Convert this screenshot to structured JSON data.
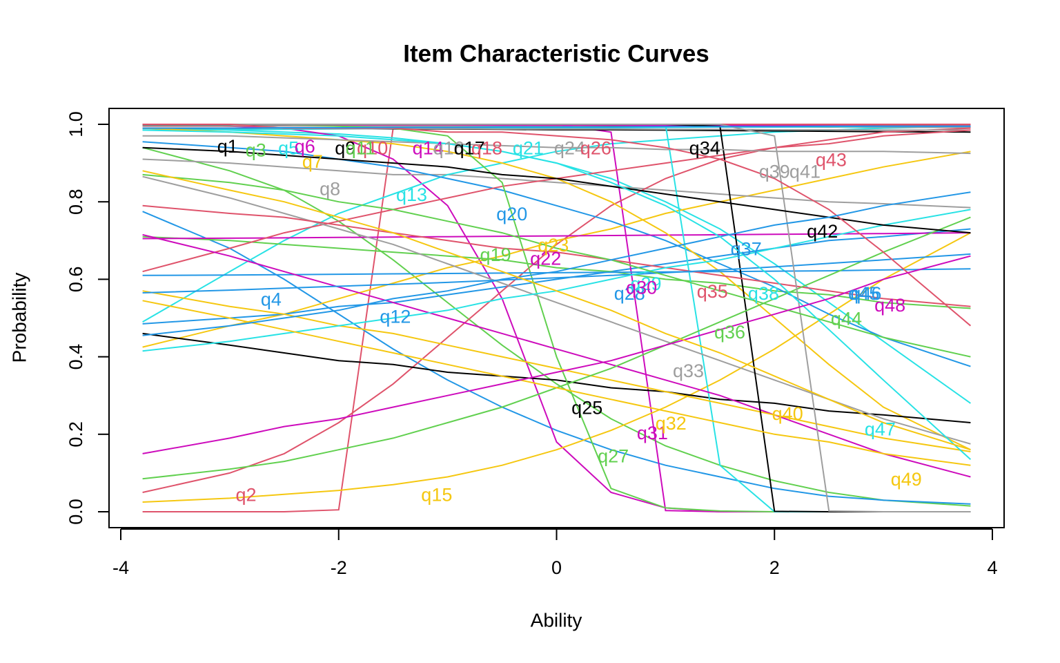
{
  "chart_data": {
    "type": "line",
    "title": "Item Characteristic Curves",
    "x_label": "Ability",
    "y_label": "Probability",
    "xlim": [
      -4,
      4
    ],
    "ylim": [
      0,
      1
    ],
    "xticks": [
      -4,
      -2,
      0,
      2,
      4
    ],
    "yticks": [
      {
        "value": 0,
        "label": "0.0"
      },
      {
        "value": 0.2,
        "label": "0.2"
      },
      {
        "value": 0.4,
        "label": "0.4"
      },
      {
        "value": 0.6,
        "label": "0.6"
      },
      {
        "value": 0.8,
        "label": "0.8"
      },
      {
        "value": 1,
        "label": "1.0"
      }
    ],
    "x": [
      -3.8,
      -3,
      -2.5,
      -2,
      -1.5,
      -1,
      -0.5,
      0,
      0.5,
      1,
      1.5,
      2,
      2.5,
      3,
      3.8
    ],
    "series": [
      {
        "name": "q1",
        "color": "#000000",
        "values": [
          1,
          1,
          1,
          1,
          1,
          1,
          1,
          1,
          0.999,
          0.999,
          0.998,
          0.998,
          0.997,
          0.996,
          0.995
        ]
      },
      {
        "name": "q2",
        "color": "#DF536B",
        "values": [
          0,
          0,
          0,
          0.005,
          0.99,
          1,
          1,
          1,
          1,
          1,
          1,
          1,
          1,
          1,
          1
        ]
      },
      {
        "name": "q3",
        "color": "#61D04F",
        "values": [
          0.94,
          0.88,
          0.83,
          0.75,
          0.65,
          0.54,
          0.43,
          0.33,
          0.24,
          0.17,
          0.12,
          0.08,
          0.05,
          0.03,
          0.015
        ]
      },
      {
        "name": "q4",
        "color": "#2297E6",
        "values": [
          0.775,
          0.68,
          0.6,
          0.51,
          0.42,
          0.34,
          0.27,
          0.21,
          0.16,
          0.12,
          0.09,
          0.06,
          0.04,
          0.03,
          0.02
        ]
      },
      {
        "name": "q5",
        "color": "#28E2E5",
        "values": [
          0.99,
          0.985,
          0.98,
          0.975,
          0.965,
          0.95,
          0.93,
          0.9,
          0.86,
          0.8,
          0.73,
          0.64,
          0.54,
          0.44,
          0.28
        ]
      },
      {
        "name": "q6",
        "color": "#CD0BBC",
        "values": [
          1,
          0.995,
          0.99,
          0.97,
          0.91,
          0.79,
          0.55,
          0.18,
          0.05,
          0.01,
          0,
          0,
          0,
          0,
          0
        ]
      },
      {
        "name": "q7",
        "color": "#F5C710",
        "values": [
          0.425,
          0.48,
          0.51,
          0.55,
          0.59,
          0.63,
          0.66,
          0.7,
          0.73,
          0.77,
          0.8,
          0.83,
          0.86,
          0.89,
          0.93
        ]
      },
      {
        "name": "q8",
        "color": "#9E9E9E",
        "values": [
          0.91,
          0.9,
          0.89,
          0.88,
          0.87,
          0.87,
          0.86,
          0.85,
          0.84,
          0.83,
          0.82,
          0.81,
          0.8,
          0.795,
          0.785
        ]
      },
      {
        "name": "q9",
        "color": "#000000",
        "values": [
          0.998,
          0.998,
          0.998,
          0.997,
          0.997,
          0.997,
          0.996,
          0.996,
          0.995,
          0.995,
          0.994,
          0.994,
          0.993,
          0.993,
          0.992
        ]
      },
      {
        "name": "q10",
        "color": "#DF536B",
        "values": [
          0.995,
          0.995,
          0.996,
          0.996,
          0.996,
          0.997,
          0.997,
          0.997,
          0.998,
          0.998,
          0.998,
          0.999,
          0.999,
          0.999,
          0.999
        ]
      },
      {
        "name": "q11",
        "color": "#61D04F",
        "values": [
          0.99,
          0.99,
          0.99,
          0.991,
          0.991,
          0.992,
          0.992,
          0.992,
          0.993,
          0.993,
          0.994,
          0.994,
          0.994,
          0.995,
          0.995
        ]
      },
      {
        "name": "q12",
        "color": "#2297E6",
        "values": [
          0.485,
          0.5,
          0.51,
          0.53,
          0.54,
          0.56,
          0.58,
          0.6,
          0.62,
          0.64,
          0.66,
          0.68,
          0.7,
          0.71,
          0.73
        ]
      },
      {
        "name": "q13",
        "color": "#28E2E5",
        "values": [
          0.49,
          0.62,
          0.7,
          0.77,
          0.82,
          0.87,
          0.9,
          0.93,
          0.95,
          0.96,
          0.97,
          0.98,
          0.985,
          0.99,
          0.995
        ]
      },
      {
        "name": "q14",
        "color": "#CD0BBC",
        "values": [
          1,
          1,
          1,
          1,
          1,
          1,
          1,
          1,
          0.98,
          0.003,
          0,
          0,
          0,
          0,
          0
        ]
      },
      {
        "name": "q15",
        "color": "#F5C710",
        "values": [
          0.025,
          0.035,
          0.045,
          0.055,
          0.07,
          0.09,
          0.12,
          0.16,
          0.21,
          0.27,
          0.34,
          0.42,
          0.51,
          0.6,
          0.72
        ]
      },
      {
        "name": "q16",
        "color": "#9E9E9E",
        "values": [
          0.996,
          0.996,
          0.996,
          0.995,
          0.995,
          0.995,
          0.995,
          0.994,
          0.994,
          0.994,
          0.993,
          0.993,
          0.993,
          0.992,
          0.992
        ]
      },
      {
        "name": "q17",
        "color": "#000000",
        "values": [
          0.99,
          0.99,
          0.989,
          0.989,
          0.988,
          0.988,
          0.987,
          0.986,
          0.986,
          0.985,
          0.984,
          0.983,
          0.982,
          0.981,
          0.98
        ]
      },
      {
        "name": "q18",
        "color": "#DF536B",
        "values": [
          0.05,
          0.1,
          0.15,
          0.23,
          0.33,
          0.45,
          0.57,
          0.69,
          0.79,
          0.86,
          0.91,
          0.94,
          0.96,
          0.98,
          0.99
        ]
      },
      {
        "name": "q19",
        "color": "#61D04F",
        "values": [
          0.71,
          0.7,
          0.69,
          0.68,
          0.67,
          0.66,
          0.65,
          0.63,
          0.62,
          0.6,
          0.59,
          0.57,
          0.56,
          0.54,
          0.525
        ]
      },
      {
        "name": "q20",
        "color": "#2297E6",
        "values": [
          0.955,
          0.94,
          0.93,
          0.91,
          0.89,
          0.86,
          0.83,
          0.79,
          0.75,
          0.7,
          0.64,
          0.58,
          0.51,
          0.45,
          0.375
        ]
      },
      {
        "name": "q21",
        "color": "#28E2E5",
        "values": [
          0.985,
          0.986,
          0.987,
          0.988,
          0.989,
          0.99,
          0.99,
          0.991,
          0.991,
          0.992,
          0.993,
          0.993,
          0.994,
          0.994,
          0.995
        ]
      },
      {
        "name": "q22",
        "color": "#CD0BBC",
        "values": [
          0.705,
          0.706,
          0.707,
          0.708,
          0.709,
          0.71,
          0.711,
          0.712,
          0.713,
          0.714,
          0.715,
          0.716,
          0.717,
          0.718,
          0.72
        ]
      },
      {
        "name": "q23",
        "color": "#F5C710",
        "values": [
          0.99,
          0.98,
          0.97,
          0.96,
          0.95,
          0.93,
          0.9,
          0.86,
          0.8,
          0.72,
          0.62,
          0.5,
          0.38,
          0.27,
          0.16
        ]
      },
      {
        "name": "q24",
        "color": "#9E9E9E",
        "values": [
          0.99,
          0.99,
          0.99,
          0.989,
          0.989,
          0.989,
          0.988,
          0.988,
          0.988,
          0.987,
          0.987,
          0.986,
          0.986,
          0.985,
          0.985
        ]
      },
      {
        "name": "q25",
        "color": "#000000",
        "values": [
          0.46,
          0.43,
          0.41,
          0.39,
          0.38,
          0.36,
          0.35,
          0.34,
          0.32,
          0.31,
          0.29,
          0.28,
          0.26,
          0.25,
          0.23
        ]
      },
      {
        "name": "q26",
        "color": "#DF536B",
        "values": [
          0.62,
          0.68,
          0.72,
          0.75,
          0.78,
          0.81,
          0.84,
          0.86,
          0.88,
          0.9,
          0.92,
          0.94,
          0.95,
          0.97,
          0.985
        ]
      },
      {
        "name": "q27",
        "color": "#61D04F",
        "values": [
          1,
          1,
          1,
          0.995,
          0.99,
          0.97,
          0.85,
          0.4,
          0.06,
          0.01,
          0.002,
          0,
          0,
          0,
          0
        ]
      },
      {
        "name": "q28",
        "color": "#2297E6",
        "values": [
          0.61,
          0.611,
          0.612,
          0.613,
          0.614,
          0.615,
          0.616,
          0.617,
          0.618,
          0.619,
          0.62,
          0.621,
          0.622,
          0.624,
          0.627
        ]
      },
      {
        "name": "q29",
        "color": "#28E2E5",
        "values": [
          1,
          1,
          1,
          1,
          1,
          1,
          1,
          1,
          1,
          0.999,
          0.12,
          0,
          0,
          0,
          0
        ]
      },
      {
        "name": "q30",
        "color": "#CD0BBC",
        "values": [
          1,
          1,
          1,
          0.999,
          0.999,
          0.999,
          0.998,
          0.998,
          0.998,
          0.997,
          0.997,
          0.996,
          0.996,
          0.995,
          0.995
        ]
      },
      {
        "name": "q31",
        "color": "#CD0BBC",
        "values": [
          0.715,
          0.66,
          0.62,
          0.58,
          0.54,
          0.5,
          0.46,
          0.42,
          0.38,
          0.34,
          0.3,
          0.25,
          0.2,
          0.15,
          0.09
        ]
      },
      {
        "name": "q32",
        "color": "#F5C710",
        "values": [
          0.57,
          0.53,
          0.51,
          0.48,
          0.46,
          0.43,
          0.4,
          0.37,
          0.34,
          0.31,
          0.28,
          0.25,
          0.22,
          0.19,
          0.155
        ]
      },
      {
        "name": "q33",
        "color": "#9E9E9E",
        "values": [
          0.865,
          0.81,
          0.77,
          0.73,
          0.69,
          0.64,
          0.59,
          0.54,
          0.49,
          0.44,
          0.39,
          0.34,
          0.29,
          0.24,
          0.175
        ]
      },
      {
        "name": "q34",
        "color": "#000000",
        "values": [
          1,
          1,
          1,
          1,
          1,
          1,
          1,
          1,
          1,
          1,
          0.995,
          0.001,
          0,
          0,
          0
        ]
      },
      {
        "name": "q35",
        "color": "#DF536B",
        "values": [
          0.79,
          0.77,
          0.76,
          0.74,
          0.72,
          0.7,
          0.68,
          0.67,
          0.65,
          0.63,
          0.61,
          0.59,
          0.57,
          0.55,
          0.53
        ]
      },
      {
        "name": "q36",
        "color": "#61D04F",
        "values": [
          0.085,
          0.11,
          0.13,
          0.16,
          0.19,
          0.23,
          0.27,
          0.32,
          0.37,
          0.43,
          0.49,
          0.55,
          0.61,
          0.67,
          0.76
        ]
      },
      {
        "name": "q37",
        "color": "#2297E6",
        "values": [
          0.565,
          0.572,
          0.577,
          0.582,
          0.587,
          0.592,
          0.598,
          0.604,
          0.61,
          0.617,
          0.624,
          0.632,
          0.641,
          0.65,
          0.665
        ]
      },
      {
        "name": "q38",
        "color": "#28E2E5",
        "values": [
          0.415,
          0.44,
          0.46,
          0.48,
          0.5,
          0.52,
          0.55,
          0.57,
          0.6,
          0.63,
          0.65,
          0.68,
          0.71,
          0.74,
          0.78
        ]
      },
      {
        "name": "q39",
        "color": "#9E9E9E",
        "values": [
          1,
          1,
          1,
          1,
          1,
          1,
          1,
          1,
          1,
          1,
          1,
          0.97,
          0.002,
          0,
          0
        ]
      },
      {
        "name": "q40",
        "color": "#F5C710",
        "values": [
          0.545,
          0.5,
          0.47,
          0.44,
          0.41,
          0.38,
          0.35,
          0.32,
          0.29,
          0.26,
          0.23,
          0.2,
          0.18,
          0.15,
          0.12
        ]
      },
      {
        "name": "q41",
        "color": "#9E9E9E",
        "values": [
          0.97,
          0.97,
          0.965,
          0.96,
          0.955,
          0.95,
          0.945,
          0.94,
          0.94,
          0.935,
          0.935,
          0.93,
          0.93,
          0.93,
          0.925
        ]
      },
      {
        "name": "q42",
        "color": "#000000",
        "values": [
          0.94,
          0.93,
          0.92,
          0.91,
          0.9,
          0.89,
          0.87,
          0.86,
          0.84,
          0.82,
          0.8,
          0.78,
          0.76,
          0.74,
          0.72
        ]
      },
      {
        "name": "q43",
        "color": "#DF536B",
        "values": [
          1,
          1,
          0.99,
          0.99,
          0.99,
          0.98,
          0.98,
          0.97,
          0.96,
          0.94,
          0.91,
          0.86,
          0.78,
          0.67,
          0.48
        ]
      },
      {
        "name": "q44",
        "color": "#61D04F",
        "values": [
          0.87,
          0.85,
          0.83,
          0.8,
          0.78,
          0.75,
          0.72,
          0.68,
          0.65,
          0.61,
          0.57,
          0.53,
          0.49,
          0.45,
          0.4
        ]
      },
      {
        "name": "q45",
        "color": "#2297E6",
        "values": [
          0.455,
          0.48,
          0.5,
          0.52,
          0.55,
          0.57,
          0.6,
          0.62,
          0.65,
          0.68,
          0.71,
          0.74,
          0.76,
          0.79,
          0.825
        ]
      },
      {
        "name": "q46",
        "color": "#2297E6",
        "values": [
          0.99,
          0.99,
          0.991,
          0.991,
          0.992,
          0.992,
          0.993,
          0.993,
          0.993,
          0.994,
          0.994,
          0.994,
          0.995,
          0.995,
          0.995
        ]
      },
      {
        "name": "q47",
        "color": "#28E2E5",
        "values": [
          0.985,
          0.98,
          0.975,
          0.97,
          0.96,
          0.95,
          0.93,
          0.9,
          0.85,
          0.79,
          0.71,
          0.6,
          0.47,
          0.34,
          0.135
        ]
      },
      {
        "name": "q48",
        "color": "#CD0BBC",
        "values": [
          0.15,
          0.19,
          0.22,
          0.24,
          0.27,
          0.3,
          0.33,
          0.36,
          0.39,
          0.43,
          0.47,
          0.51,
          0.55,
          0.6,
          0.66
        ]
      },
      {
        "name": "q49",
        "color": "#F5C710",
        "values": [
          0.88,
          0.83,
          0.8,
          0.76,
          0.72,
          0.67,
          0.62,
          0.57,
          0.52,
          0.46,
          0.41,
          0.35,
          0.29,
          0.23,
          0.16
        ]
      }
    ]
  }
}
